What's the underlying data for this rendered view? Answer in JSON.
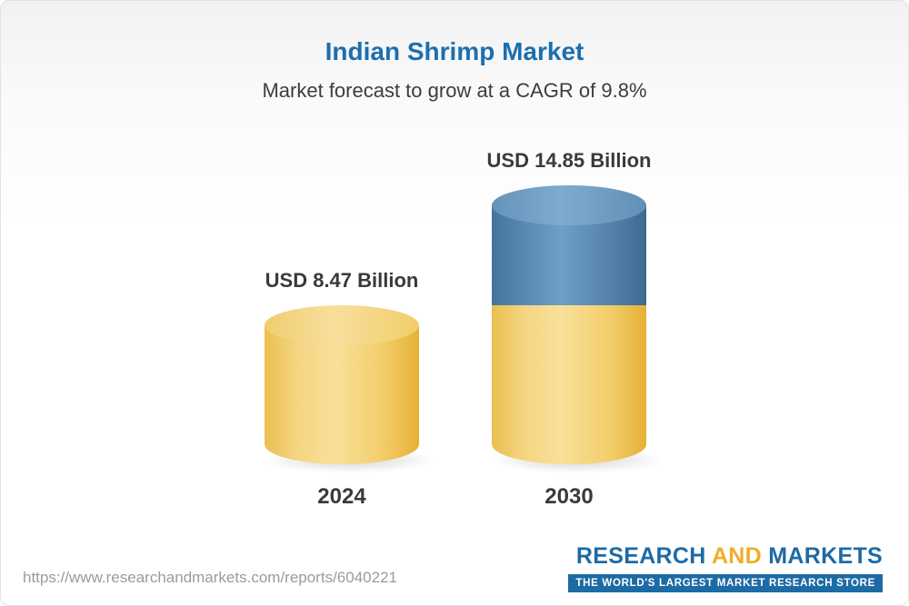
{
  "header": {
    "title": "Indian Shrimp Market",
    "subtitle": "Market forecast to grow at a CAGR of 9.8%"
  },
  "chart_data": {
    "type": "bar",
    "title": "Indian Shrimp Market",
    "subtitle": "Market forecast to grow at a CAGR of 9.8%",
    "categories": [
      "2024",
      "2030"
    ],
    "values": [
      8.47,
      14.85
    ],
    "unit": "USD Billion",
    "value_labels": [
      "USD 8.47 Billion",
      "USD 14.85 Billion"
    ],
    "cagr_percent": 9.8,
    "ylim": [
      0,
      16
    ],
    "grid": false,
    "legend": "none",
    "bar_style": "3d-cylinder",
    "colors": {
      "bar_base_yellow": "#f0c860",
      "bar_growth_blue": "#4e81a9",
      "title_blue": "#1c6fae",
      "label_gray": "#3a3a3a"
    }
  },
  "footer": {
    "url": "https://www.researchandmarkets.com/reports/6040221",
    "logo": {
      "research": "RESEARCH",
      "and": "AND",
      "markets": "MARKETS",
      "tagline": "THE WORLD'S LARGEST MARKET RESEARCH STORE"
    }
  }
}
